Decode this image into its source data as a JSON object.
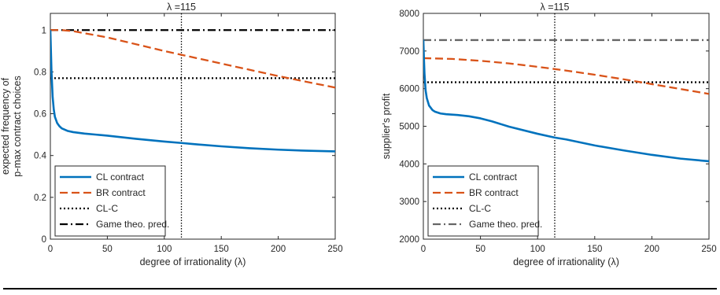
{
  "chart_data": [
    {
      "type": "line",
      "xlabel": "degree of irrationality (λ)",
      "ylabel_lines": [
        "expected frequency of",
        "p-max contract choices"
      ],
      "xlim": [
        0,
        250
      ],
      "ylim": [
        0,
        1.08
      ],
      "xticks": [
        0,
        50,
        100,
        150,
        200,
        250
      ],
      "yticks": [
        0,
        0.2,
        0.4,
        0.6,
        0.8,
        1
      ],
      "xtick_labels": [
        "0",
        "50",
        "100",
        "150",
        "200",
        "250"
      ],
      "ytick_labels": [
        "0",
        "0.2",
        "0.4",
        "0.6",
        "0.8",
        "1"
      ],
      "grid": false,
      "legend_position": "bottom-left",
      "vline": {
        "x": 115,
        "label": "λ =115"
      },
      "series": [
        {
          "name": "CL contract",
          "color": "#0072BD",
          "style": "solid",
          "x": [
            0,
            0.5,
            1,
            2,
            3,
            4,
            6,
            8,
            10,
            15,
            20,
            30,
            40,
            50,
            75,
            100,
            115,
            125,
            150,
            175,
            200,
            225,
            250
          ],
          "y": [
            1.0,
            0.9,
            0.8,
            0.68,
            0.62,
            0.585,
            0.555,
            0.54,
            0.53,
            0.518,
            0.512,
            0.505,
            0.5,
            0.495,
            0.48,
            0.467,
            0.46,
            0.455,
            0.444,
            0.435,
            0.428,
            0.423,
            0.42
          ]
        },
        {
          "name": "BR contract",
          "color": "#D95319",
          "style": "dashed",
          "x": [
            0,
            10,
            20,
            50,
            100,
            150,
            200,
            250
          ],
          "y": [
            1.0,
            1.0,
            0.995,
            0.965,
            0.9,
            0.84,
            0.78,
            0.725
          ]
        },
        {
          "name": "CL-C",
          "color": "#000000",
          "style": "dotted",
          "x": [
            0,
            250
          ],
          "y": [
            0.77,
            0.77
          ]
        },
        {
          "name": "Game theo. pred.",
          "color": "#000000",
          "style": "dashdot",
          "x": [
            0,
            250
          ],
          "y": [
            1.0,
            1.0
          ]
        }
      ]
    },
    {
      "type": "line",
      "xlabel": "degree of irrationality (λ)",
      "ylabel_lines": [
        "supplier's profit"
      ],
      "xlim": [
        0,
        250
      ],
      "ylim": [
        2000,
        8000
      ],
      "xticks": [
        0,
        50,
        100,
        150,
        200,
        250
      ],
      "yticks": [
        2000,
        3000,
        4000,
        5000,
        6000,
        7000,
        8000
      ],
      "xtick_labels": [
        "0",
        "50",
        "100",
        "150",
        "200",
        "250"
      ],
      "ytick_labels": [
        "2000",
        "3000",
        "4000",
        "5000",
        "6000",
        "7000",
        "8000"
      ],
      "grid": false,
      "legend_position": "bottom-left",
      "vline": {
        "x": 115,
        "label": "λ =115"
      },
      "series": [
        {
          "name": "CL contract",
          "color": "#0072BD",
          "style": "solid",
          "x": [
            0,
            0.5,
            1,
            2,
            3,
            5,
            8,
            10,
            15,
            20,
            30,
            40,
            50,
            60,
            75,
            100,
            115,
            125,
            150,
            175,
            200,
            225,
            250
          ],
          "y": [
            7300,
            6800,
            6400,
            5950,
            5750,
            5550,
            5430,
            5390,
            5340,
            5320,
            5300,
            5265,
            5210,
            5130,
            4990,
            4800,
            4700,
            4650,
            4490,
            4360,
            4240,
            4140,
            4070
          ]
        },
        {
          "name": "BR contract",
          "color": "#D95319",
          "style": "dashed",
          "x": [
            0,
            25,
            50,
            75,
            100,
            125,
            150,
            175,
            200,
            225,
            250
          ],
          "y": [
            6810,
            6790,
            6740,
            6670,
            6580,
            6480,
            6370,
            6250,
            6120,
            5990,
            5860
          ]
        },
        {
          "name": "CL-C",
          "color": "#000000",
          "style": "dotted",
          "x": [
            0,
            250
          ],
          "y": [
            6170,
            6170
          ]
        },
        {
          "name": "Game theo. pred.",
          "color": "#666666",
          "style": "dashdot",
          "x": [
            0,
            250
          ],
          "y": [
            7290,
            7290
          ]
        }
      ]
    }
  ]
}
